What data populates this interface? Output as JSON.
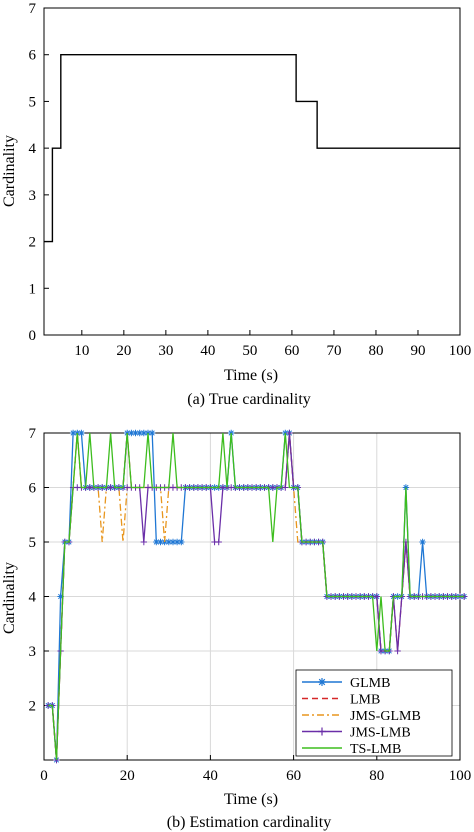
{
  "chart_data": [
    {
      "type": "line",
      "caption": "(a) True cardinality",
      "xlabel": "Time (s)",
      "ylabel": "Cardinality",
      "xlim": [
        1,
        100
      ],
      "ylim": [
        0,
        7
      ],
      "xticks": [
        10,
        20,
        30,
        40,
        50,
        60,
        70,
        80,
        90,
        100
      ],
      "yticks": [
        0,
        1,
        2,
        3,
        4,
        5,
        6,
        7
      ],
      "grid": false,
      "series": [
        {
          "step": true,
          "color": "#000000",
          "x": [
            1,
            3,
            5,
            61,
            66,
            100
          ],
          "y": [
            2,
            4,
            6,
            5,
            4,
            4
          ]
        }
      ]
    },
    {
      "type": "line",
      "caption": "(b) Estimation cardinality",
      "xlabel": "Time (s)",
      "ylabel": "Cardinality",
      "xlim": [
        0,
        100
      ],
      "ylim": [
        1,
        7
      ],
      "xticks": [
        0,
        20,
        40,
        60,
        80,
        100
      ],
      "yticks": [
        2,
        3,
        4,
        5,
        6,
        7
      ],
      "grid": true,
      "legend": "bottom-right",
      "series": [
        {
          "name": "GLMB",
          "color": "#1f77d4",
          "marker": "star",
          "dash": "",
          "y": [
            2,
            2,
            1,
            4,
            5,
            5,
            7,
            7,
            7,
            6,
            6,
            6,
            6,
            6,
            6,
            6,
            6,
            6,
            6,
            7,
            7,
            7,
            7,
            7,
            7,
            7,
            5,
            5,
            5,
            5,
            5,
            5,
            5,
            6,
            6,
            6,
            6,
            6,
            6,
            6,
            6,
            6,
            6,
            6,
            7,
            6,
            6,
            6,
            6,
            6,
            6,
            6,
            6,
            6,
            6,
            6,
            6,
            7,
            7,
            6,
            6,
            5,
            5,
            5,
            5,
            5,
            5,
            4,
            4,
            4,
            4,
            4,
            4,
            4,
            4,
            4,
            4,
            4,
            4,
            4,
            3,
            3,
            3,
            4,
            4,
            4,
            6,
            4,
            4,
            4,
            5,
            4,
            4,
            4,
            4,
            4,
            4,
            4,
            4,
            4,
            4
          ]
        },
        {
          "name": "LMB",
          "color": "#d62728",
          "marker": "",
          "dash": "6,4",
          "y": [
            2,
            2,
            1,
            3,
            5,
            5,
            6,
            7,
            6,
            6,
            6,
            6,
            6,
            6,
            6,
            6,
            6,
            6,
            6,
            7,
            6,
            6,
            6,
            6,
            6,
            6,
            6,
            6,
            6,
            6,
            6,
            6,
            6,
            6,
            6,
            6,
            6,
            6,
            6,
            6,
            6,
            6,
            6,
            6,
            6,
            6,
            6,
            6,
            6,
            6,
            6,
            6,
            6,
            6,
            6,
            6,
            6,
            6,
            7,
            6,
            6,
            5,
            5,
            5,
            5,
            5,
            5,
            4,
            4,
            4,
            4,
            4,
            4,
            4,
            4,
            4,
            4,
            4,
            4,
            4,
            3,
            3,
            3,
            4,
            3,
            4,
            5,
            4,
            4,
            4,
            4,
            4,
            4,
            4,
            4,
            4,
            4,
            4,
            4,
            4,
            4
          ]
        },
        {
          "name": "JMS-GLMB",
          "color": "#e8961e",
          "marker": "",
          "dash": "7,3,2,3",
          "y": [
            2,
            2,
            1,
            3,
            5,
            5,
            6,
            7,
            6,
            6,
            6,
            6,
            6,
            5,
            6,
            6,
            6,
            6,
            5,
            6,
            6,
            6,
            6,
            6,
            6,
            6,
            6,
            6,
            5,
            6,
            6,
            6,
            6,
            6,
            6,
            6,
            6,
            6,
            6,
            6,
            6,
            6,
            6,
            6,
            6,
            6,
            6,
            6,
            6,
            6,
            6,
            6,
            6,
            6,
            6,
            6,
            6,
            6,
            7,
            6,
            5,
            5,
            5,
            5,
            5,
            5,
            5,
            4,
            4,
            4,
            4,
            4,
            4,
            4,
            4,
            4,
            4,
            4,
            4,
            4,
            3,
            3,
            3,
            4,
            4,
            4,
            5,
            4,
            4,
            4,
            4,
            4,
            4,
            4,
            4,
            4,
            4,
            4,
            4,
            4,
            4
          ]
        },
        {
          "name": "JMS-LMB",
          "color": "#6a2ea8",
          "marker": "plus",
          "dash": "",
          "y": [
            2,
            2,
            1,
            3,
            5,
            5,
            6,
            6,
            6,
            6,
            6,
            6,
            6,
            6,
            6,
            6,
            6,
            6,
            6,
            6,
            6,
            6,
            6,
            5,
            6,
            6,
            6,
            6,
            6,
            6,
            6,
            6,
            6,
            6,
            6,
            6,
            6,
            6,
            6,
            6,
            5,
            5,
            6,
            6,
            6,
            6,
            6,
            6,
            6,
            6,
            6,
            6,
            6,
            6,
            6,
            6,
            6,
            6,
            7,
            6,
            6,
            5,
            5,
            5,
            5,
            5,
            5,
            4,
            4,
            4,
            4,
            4,
            4,
            4,
            4,
            4,
            4,
            4,
            4,
            4,
            3,
            3,
            3,
            4,
            3,
            4,
            5,
            4,
            4,
            4,
            4,
            4,
            4,
            4,
            4,
            4,
            4,
            4,
            4,
            4,
            4
          ]
        },
        {
          "name": "TS-LMB",
          "color": "#3dbd1e",
          "marker": "",
          "dash": "",
          "y": [
            2,
            2,
            1,
            3,
            5,
            5,
            6,
            7,
            6,
            6,
            7,
            6,
            6,
            6,
            6,
            7,
            6,
            6,
            6,
            7,
            6,
            6,
            6,
            6,
            7,
            6,
            6,
            6,
            6,
            6,
            7,
            6,
            6,
            6,
            6,
            6,
            6,
            6,
            6,
            6,
            6,
            6,
            7,
            6,
            7,
            6,
            6,
            6,
            6,
            6,
            6,
            6,
            6,
            6,
            5,
            6,
            6,
            7,
            6,
            6,
            6,
            5,
            5,
            5,
            5,
            5,
            5,
            4,
            4,
            4,
            4,
            4,
            4,
            4,
            4,
            4,
            4,
            4,
            4,
            3,
            4,
            3,
            3,
            4,
            4,
            4,
            6,
            4,
            4,
            4,
            4,
            4,
            4,
            4,
            4,
            4,
            4,
            4,
            4,
            4,
            4
          ]
        }
      ]
    }
  ]
}
